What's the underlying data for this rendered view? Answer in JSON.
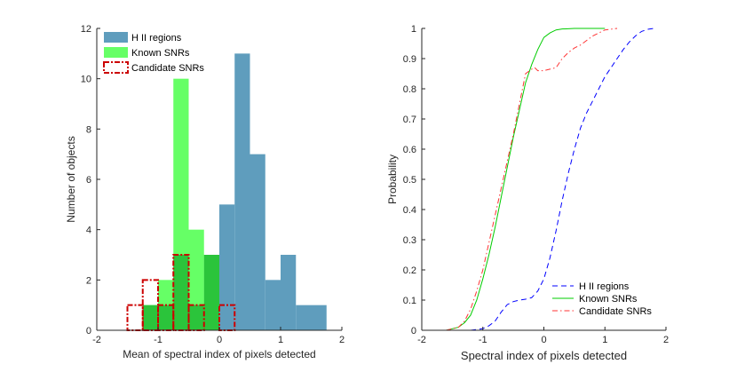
{
  "chart_data": [
    {
      "type": "bar",
      "title": "",
      "xlabel": "Mean of spectral index of pixels detected",
      "ylabel": "Number of objects",
      "xlim": [
        -2,
        2
      ],
      "ylim": [
        0,
        12
      ],
      "xticks": [
        -2,
        -1,
        0,
        1,
        2
      ],
      "yticks": [
        0,
        2,
        4,
        6,
        8,
        10,
        12
      ],
      "bin_width": 0.25,
      "series": [
        {
          "name": "H II regions",
          "style": "filled",
          "color": "#5f9dbd",
          "bins": [
            [
              -0.25,
              0
            ],
            [
              0,
              0.25
            ],
            [
              0.25,
              0.5
            ],
            [
              0.5,
              0.75
            ],
            [
              0.75,
              1
            ],
            [
              1,
              1.25
            ],
            [
              1.25,
              1.5
            ],
            [
              1.5,
              1.75
            ]
          ],
          "values": [
            1,
            5,
            11,
            7,
            2,
            3,
            1,
            1
          ]
        },
        {
          "name": "Known SNRs",
          "style": "filled",
          "color": "#66ff66",
          "bins": [
            [
              -1.25,
              -1
            ],
            [
              -1,
              -0.75
            ],
            [
              -0.75,
              -0.5
            ],
            [
              -0.5,
              -0.25
            ],
            [
              -0.25,
              0
            ]
          ],
          "values": [
            1,
            2,
            10,
            4,
            3
          ]
        },
        {
          "name": "Candidate SNRs",
          "style": "dashdot-outline",
          "color": "#cc0000",
          "bins": [
            [
              -1.5,
              -1.25
            ],
            [
              -1.25,
              -1
            ],
            [
              -1,
              -0.75
            ],
            [
              -0.75,
              -0.5
            ],
            [
              -0.5,
              -0.25
            ],
            [
              -0.25,
              0
            ],
            [
              0,
              0.25
            ]
          ],
          "values": [
            1,
            2,
            1,
            3,
            1,
            0,
            1
          ]
        }
      ],
      "overlap_color": "#2bc43b",
      "legend": {
        "location": "top-left",
        "entries": [
          "H II regions",
          "Known SNRs",
          "Candidate SNRs"
        ]
      }
    },
    {
      "type": "line",
      "title": "",
      "xlabel": "Spectral index of pixels detected",
      "ylabel": "Probability",
      "xlim": [
        -2,
        2
      ],
      "ylim": [
        0,
        1
      ],
      "xticks": [
        -2,
        -1,
        0,
        1,
        2
      ],
      "yticks": [
        0,
        0.1,
        0.2,
        0.3,
        0.4,
        0.5,
        0.6,
        0.7,
        0.8,
        0.9,
        1
      ],
      "ytick_labels": [
        "0",
        "0.1",
        "0.2",
        "0.3",
        "0.4",
        "0.5",
        "0.6",
        "0.7",
        "0.8",
        "0.9",
        "1"
      ],
      "series": [
        {
          "name": "H II regions",
          "color": "#0000ff",
          "dash": "dashed",
          "x": [
            -1.2,
            -1.0,
            -0.9,
            -0.8,
            -0.7,
            -0.6,
            -0.5,
            -0.4,
            -0.3,
            -0.2,
            -0.1,
            0.0,
            0.1,
            0.2,
            0.3,
            0.4,
            0.5,
            0.6,
            0.7,
            0.8,
            0.9,
            1.0,
            1.1,
            1.2,
            1.3,
            1.4,
            1.5,
            1.6,
            1.7,
            1.8
          ],
          "y": [
            0.0,
            0.005,
            0.015,
            0.03,
            0.06,
            0.085,
            0.095,
            0.1,
            0.103,
            0.108,
            0.13,
            0.17,
            0.24,
            0.33,
            0.43,
            0.52,
            0.6,
            0.67,
            0.72,
            0.76,
            0.8,
            0.84,
            0.87,
            0.9,
            0.93,
            0.955,
            0.975,
            0.99,
            0.997,
            1.0
          ]
        },
        {
          "name": "Known SNRs",
          "color": "#00cc00",
          "dash": "solid",
          "x": [
            -1.6,
            -1.4,
            -1.3,
            -1.2,
            -1.1,
            -1.0,
            -0.9,
            -0.8,
            -0.7,
            -0.6,
            -0.5,
            -0.4,
            -0.3,
            -0.2,
            -0.1,
            0.0,
            0.1,
            0.2,
            0.3,
            0.5,
            1.0
          ],
          "y": [
            0.0,
            0.01,
            0.025,
            0.05,
            0.1,
            0.17,
            0.25,
            0.34,
            0.44,
            0.54,
            0.64,
            0.73,
            0.82,
            0.88,
            0.93,
            0.97,
            0.985,
            0.995,
            0.998,
            1.0,
            1.0
          ]
        },
        {
          "name": "Candidate SNRs",
          "color": "#ff3333",
          "dash": "dashdot",
          "x": [
            -1.6,
            -1.4,
            -1.3,
            -1.2,
            -1.1,
            -1.0,
            -0.9,
            -0.8,
            -0.7,
            -0.6,
            -0.5,
            -0.4,
            -0.3,
            -0.2,
            -0.15,
            -0.1,
            0.0,
            0.1,
            0.2,
            0.3,
            0.4,
            0.5,
            0.6,
            0.7,
            0.8,
            0.9,
            1.0,
            1.2
          ],
          "y": [
            0.0,
            0.01,
            0.03,
            0.07,
            0.13,
            0.2,
            0.29,
            0.38,
            0.47,
            0.56,
            0.65,
            0.75,
            0.85,
            0.865,
            0.87,
            0.86,
            0.86,
            0.865,
            0.87,
            0.9,
            0.92,
            0.935,
            0.945,
            0.96,
            0.975,
            0.985,
            0.995,
            1.0
          ]
        }
      ],
      "legend": {
        "location": "bottom-right",
        "entries": [
          "H II regions",
          "Known SNRs",
          "Candidate SNRs"
        ]
      }
    }
  ]
}
